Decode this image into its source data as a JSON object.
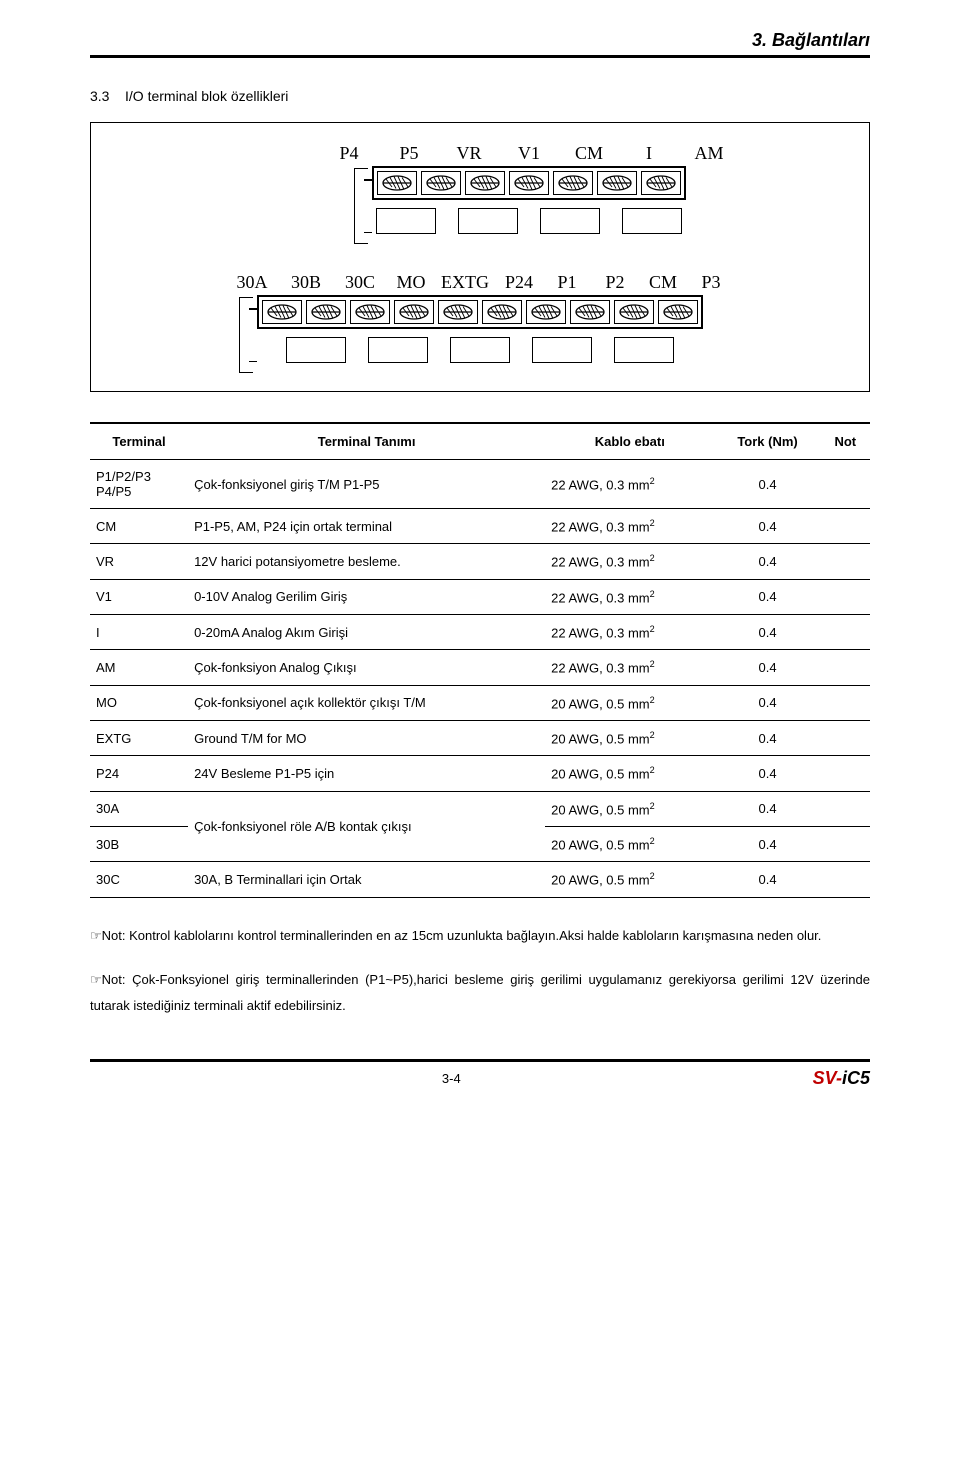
{
  "header": {
    "title": "3. Bağlantıları"
  },
  "section": {
    "number": "3.3",
    "title": "I/O terminal blok özellikleri"
  },
  "diagram": {
    "top_labels": [
      "P4",
      "P5",
      "VR",
      "V1",
      "CM",
      "I",
      "AM"
    ],
    "bot_labels": [
      "30A",
      "30B",
      "30C",
      "MO",
      "EXTG",
      "P24",
      "P1",
      "P2",
      "CM",
      "P3"
    ],
    "top_terminal_count": 7,
    "top_blank_count": 4,
    "bot_terminal_count": 10,
    "bot_blank_count": 5,
    "stroke_color": "#000000",
    "fill_color": "#ffffff",
    "hatch_color": "#000000"
  },
  "table": {
    "headers": [
      "Terminal",
      "Terminal Tanımı",
      "Kablo ebatı",
      "Tork (Nm)",
      "Not"
    ],
    "rows": [
      {
        "terminal": "P1/P2/P3\nP4/P5",
        "desc": "Çok-fonksiyonel giriş T/M P1-P5",
        "cable": "22 AWG, 0.3 mm²",
        "torque": "0.4",
        "note": "",
        "group_end": true
      },
      {
        "terminal": "CM",
        "desc": "P1-P5, AM, P24 için ortak terminal",
        "cable": "22 AWG, 0.3 mm²",
        "torque": "0.4",
        "note": ""
      },
      {
        "terminal": "VR",
        "desc": "12V harici potansiyometre besleme.",
        "cable": "22 AWG, 0.3 mm²",
        "torque": "0.4",
        "note": ""
      },
      {
        "terminal": "V1",
        "desc": "0-10V Analog Gerilim Giriş",
        "cable": "22 AWG, 0.3 mm²",
        "torque": "0.4",
        "note": ""
      },
      {
        "terminal": "I",
        "desc": "0-20mA Analog Akım Girişi",
        "cable": "22 AWG, 0.3 mm²",
        "torque": "0.4",
        "note": ""
      },
      {
        "terminal": "AM",
        "desc": "Çok-fonksiyon Analog Çıkışı",
        "cable": "22 AWG, 0.3 mm²",
        "torque": "0.4",
        "note": ""
      },
      {
        "terminal": "MO",
        "desc": "Çok-fonksiyonel açık kollektör çıkışı T/M",
        "cable": "20 AWG, 0.5 mm²",
        "torque": "0.4",
        "note": ""
      },
      {
        "terminal": "EXTG",
        "desc": "Ground T/M for MO",
        "cable": "20 AWG, 0.5 mm²",
        "torque": "0.4",
        "note": ""
      },
      {
        "terminal": "P24",
        "desc": "24V Besleme P1-P5 için",
        "cable": "20 AWG, 0.5 mm²",
        "torque": "0.4",
        "note": "",
        "group_end": true
      },
      {
        "terminal": "30A",
        "desc": "Çok-fonksiyonel röle A/B kontak çıkışı",
        "cable": "20 AWG, 0.5 mm²",
        "torque": "0.4",
        "note": "",
        "rowspan": 2
      },
      {
        "terminal": "30B",
        "desc": "",
        "cable": "20 AWG, 0.5 mm²",
        "torque": "0.4",
        "note": "",
        "group_end": true
      },
      {
        "terminal": "30C",
        "desc": "30A, B Terminallari için Ortak",
        "cable": "20 AWG, 0.5 mm²",
        "torque": "0.4",
        "note": "",
        "group_end": true
      }
    ]
  },
  "notes": [
    "Not: Kontrol kablolarını kontrol terminallerinden en az 15cm uzunlukta bağlayın.Aksi halde kabloların karışmasına neden olur.",
    "Not: Çok-Fonksyionel giriş terminallerinden (P1~P5),harici besleme giriş gerilimi uygulamanız gerekiyorsa gerilimi 12V üzerinde tutarak istediğiniz terminali aktif edebilirsiniz."
  ],
  "footer": {
    "page": "3-4",
    "brand_sv": "SV-",
    "brand_ic5": "iC5"
  },
  "colors": {
    "accent_red": "#c00000",
    "rule": "#000000"
  }
}
